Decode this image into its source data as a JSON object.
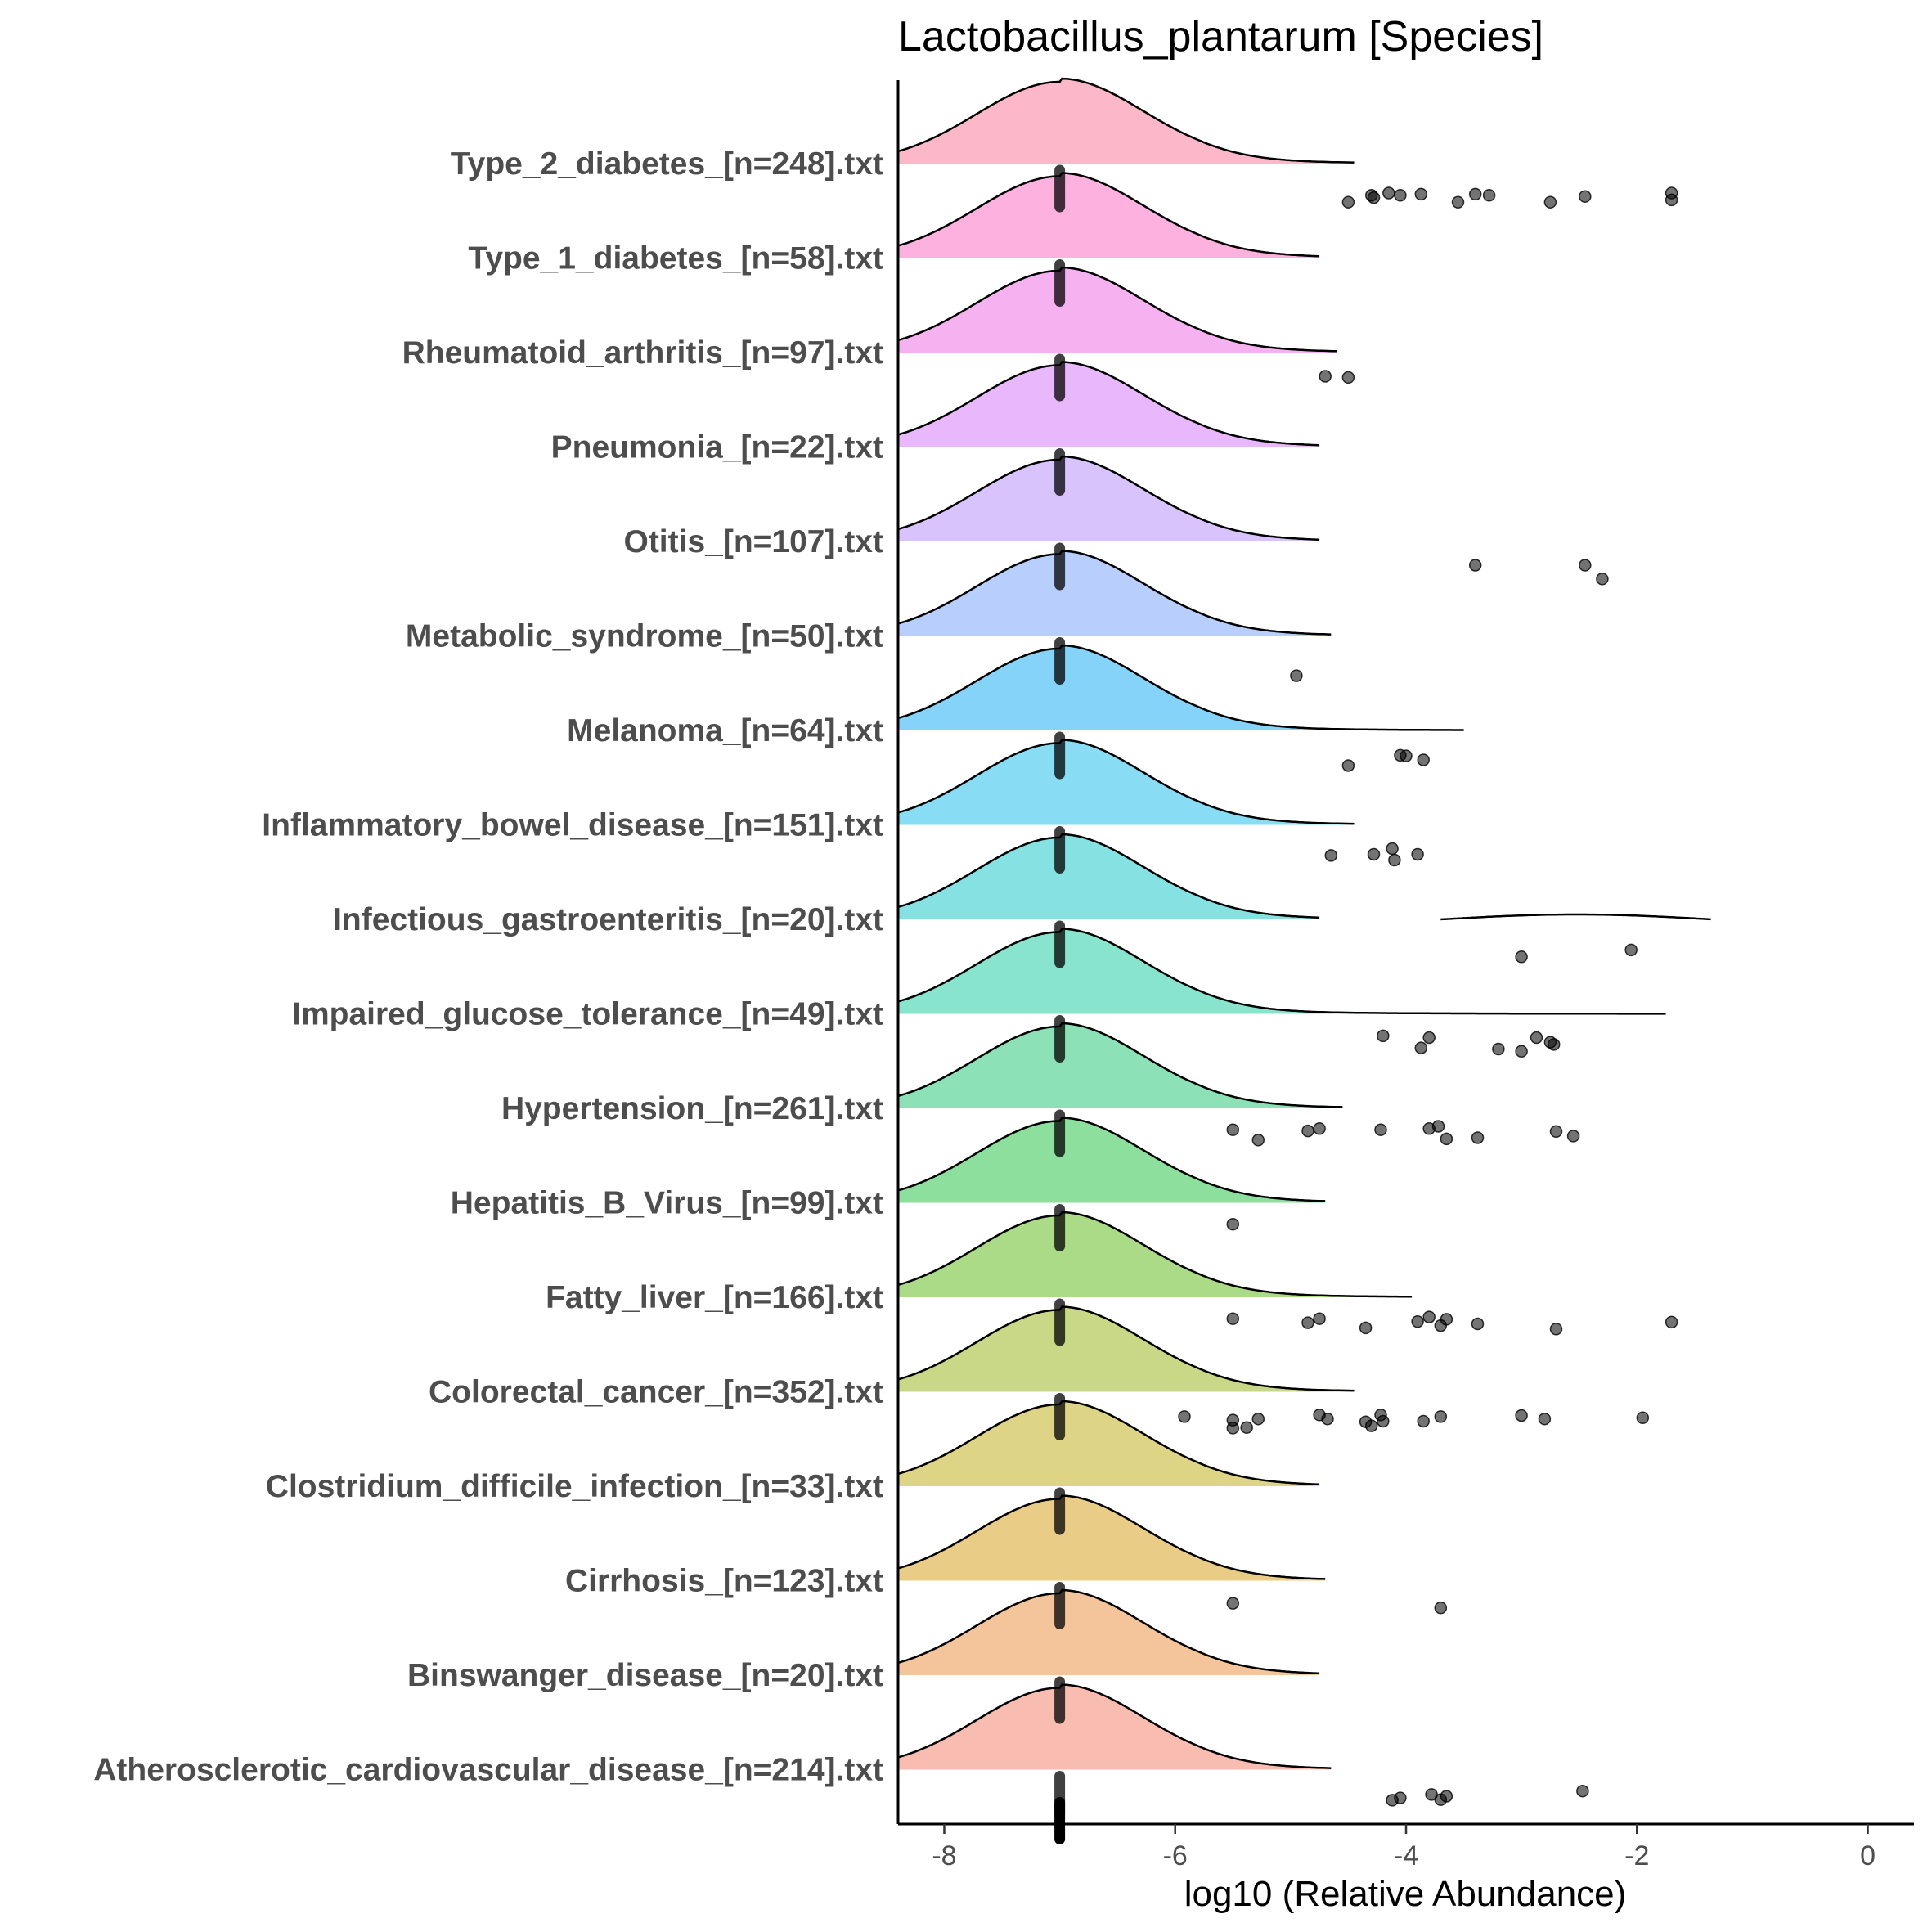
{
  "chart_data": {
    "type": "ridgeline",
    "title": "Lactobacillus_plantarum [Species]",
    "xlabel": "log10 (Relative Abundance)",
    "ylabel": "",
    "xlim": [
      -8.4,
      0.4
    ],
    "x_ticks": [
      -8,
      -6,
      -4,
      -2,
      0
    ],
    "grid": false,
    "legend": "none",
    "categories": [
      {
        "label": "Type_2_diabetes_[n=248].txt",
        "color": "#fcb3c6",
        "xmax": -4.45,
        "points": [
          [
            -4.5,
            -1.8
          ],
          [
            -4.3,
            -1.2
          ],
          [
            -4.28,
            -1.4
          ],
          [
            -4.15,
            -1.0
          ],
          [
            -4.05,
            -1.2
          ],
          [
            -3.87,
            -1.1
          ],
          [
            -3.55,
            -1.8
          ],
          [
            -3.4,
            -1.1
          ],
          [
            -3.28,
            -1.2
          ],
          [
            -2.75,
            -1.8
          ],
          [
            -2.45,
            -1.3
          ],
          [
            -1.7,
            -1.0
          ],
          [
            -1.7,
            -1.6
          ]
        ]
      },
      {
        "label": "Type_1_diabetes_[n=58].txt",
        "color": "#fcaddd",
        "xmax": -4.75,
        "points": []
      },
      {
        "label": "Rheumatoid_arthritis_[n=97].txt",
        "color": "#f6adef",
        "xmax": -4.6,
        "points": [
          [
            -4.7,
            -0.5
          ],
          [
            -4.5,
            -0.6
          ]
        ]
      },
      {
        "label": "Pneumonia_[n=22].txt",
        "color": "#e8b3fb",
        "xmax": -4.75,
        "points": []
      },
      {
        "label": "Otitis_[n=107].txt",
        "color": "#d6c0fd",
        "xmax": -4.75,
        "points": [
          [
            -3.4,
            -0.5
          ],
          [
            -2.45,
            -0.5
          ],
          [
            -2.3,
            -1.7
          ]
        ]
      },
      {
        "label": "Metabolic_syndrome_[n=50].txt",
        "color": "#b4cbfd",
        "xmax": -4.65,
        "points": [
          [
            -4.95,
            -1.9
          ]
        ]
      },
      {
        "label": "Melanoma_[n=64].txt",
        "color": "#7fd1fa",
        "xmax": -3.5,
        "points": [
          [
            -4.05,
            -0.6
          ],
          [
            -4.0,
            -0.65
          ],
          [
            -3.85,
            -1.0
          ],
          [
            -4.5,
            -1.5
          ]
        ]
      },
      {
        "label": "Inflammatory_bowel_disease_[n=151].txt",
        "color": "#82daf2",
        "xmax": -4.45,
        "points": [
          [
            -4.65,
            -1.1
          ],
          [
            -4.28,
            -1.0
          ],
          [
            -4.12,
            -0.5
          ],
          [
            -4.1,
            -1.5
          ],
          [
            -3.9,
            -1.0
          ]
        ]
      },
      {
        "label": "Infectious_gastroenteritis_[n=20].txt",
        "color": "#80dfe0",
        "xmax": -4.75,
        "points": [
          [
            -3.0,
            -1.7
          ],
          [
            -2.05,
            -1.1
          ]
        ],
        "extra_segment": {
          "from": -3.7,
          "to": -1.35
        }
      },
      {
        "label": "Impaired_glucose_tolerance_[n=49].txt",
        "color": "#83e3cb",
        "xmax": -1.75,
        "points": [
          [
            -4.2,
            -0.35
          ],
          [
            -3.8,
            -0.5
          ],
          [
            -3.87,
            -1.4
          ],
          [
            -3.2,
            -1.5
          ],
          [
            -3.0,
            -1.7
          ],
          [
            -2.87,
            -0.5
          ],
          [
            -2.75,
            -0.9
          ],
          [
            -2.72,
            -1.1
          ]
        ]
      },
      {
        "label": "Hypertension_[n=261].txt",
        "color": "#86e0b2",
        "xmax": -4.55,
        "points": [
          [
            -5.5,
            -0.3
          ],
          [
            -5.28,
            -1.2
          ],
          [
            -4.85,
            -0.4
          ],
          [
            -4.75,
            -0.2
          ],
          [
            -4.22,
            -0.3
          ],
          [
            -3.8,
            -0.2
          ],
          [
            -3.72,
            0.0
          ],
          [
            -3.65,
            -1.1
          ],
          [
            -3.38,
            -1.0
          ],
          [
            -2.7,
            -0.45
          ],
          [
            -2.55,
            -0.85
          ]
        ]
      },
      {
        "label": "Hepatitis_B_Virus_[n=99].txt",
        "color": "#87dd99",
        "xmax": -4.7,
        "points": [
          [
            -5.5,
            -0.3
          ]
        ]
      },
      {
        "label": "Fatty_liver_[n=166].txt",
        "color": "#a6d980",
        "xmax": -3.95,
        "points": [
          [
            -5.5,
            -0.3
          ],
          [
            -4.85,
            -0.65
          ],
          [
            -4.75,
            -0.3
          ],
          [
            -4.35,
            -1.1
          ],
          [
            -3.9,
            -0.55
          ],
          [
            -3.8,
            -0.15
          ],
          [
            -3.7,
            -0.9
          ],
          [
            -3.65,
            -0.35
          ],
          [
            -3.38,
            -0.75
          ],
          [
            -2.7,
            -1.2
          ],
          [
            -1.7,
            -0.6
          ]
        ]
      },
      {
        "label": "Colorectal_cancer_[n=352].txt",
        "color": "#c6d680",
        "xmax": -4.45,
        "points": [
          [
            -5.92,
            -0.6
          ],
          [
            -5.5,
            -0.9
          ],
          [
            -5.5,
            -1.6
          ],
          [
            -5.38,
            -1.55
          ],
          [
            -5.28,
            -0.8
          ],
          [
            -4.75,
            -0.45
          ],
          [
            -4.68,
            -0.8
          ],
          [
            -4.35,
            -1.05
          ],
          [
            -4.3,
            -1.4
          ],
          [
            -4.22,
            -0.45
          ],
          [
            -4.2,
            -1.0
          ],
          [
            -3.85,
            -1.0
          ],
          [
            -3.7,
            -0.6
          ],
          [
            -3.0,
            -0.5
          ],
          [
            -2.8,
            -0.8
          ],
          [
            -1.95,
            -0.7
          ]
        ]
      },
      {
        "label": "Clostridium_difficile_infection_[n=33].txt",
        "color": "#dcd280",
        "xmax": -4.75,
        "points": []
      },
      {
        "label": "Cirrhosis_[n=123].txt",
        "color": "#e8ca80",
        "xmax": -4.7,
        "points": [
          [
            -5.5,
            -0.4
          ],
          [
            -3.7,
            -0.8
          ]
        ]
      },
      {
        "label": "Binswanger_disease_[n=20].txt",
        "color": "#f3c296",
        "xmax": -4.75,
        "points": []
      },
      {
        "label": "Atherosclerotic_cardiovascular_disease_[n=214].txt",
        "color": "#f9b8ad",
        "xmax": -4.65,
        "points": [
          [
            -4.12,
            -1.1
          ],
          [
            -4.05,
            -0.9
          ],
          [
            -3.78,
            -0.6
          ],
          [
            -3.7,
            -1.05
          ],
          [
            -3.65,
            -0.75
          ],
          [
            -2.47,
            -0.3
          ]
        ]
      }
    ]
  }
}
